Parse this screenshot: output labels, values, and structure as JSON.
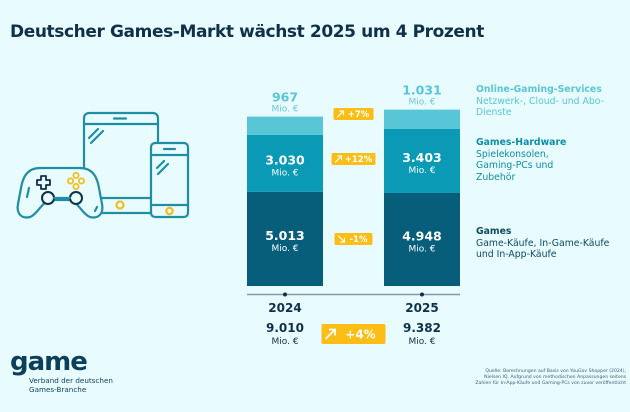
{
  "title": "Deutscher Games-Markt wächst 2025 um 4 Prozent",
  "colors": {
    "background": "#e8fbfe",
    "online": "#59c6d8",
    "hardware": "#0a9ab5",
    "games": "#075e7a",
    "badge": "#fbbd16",
    "dark_text": "#0f3049",
    "icon_stroke": "#1f8ea4",
    "icon_accent": "#f3bd1d"
  },
  "illustration": {
    "icons": [
      "gamepad-icon",
      "tablet-icon",
      "smartphone-icon"
    ]
  },
  "chart_data": {
    "type": "bar",
    "stacked": true,
    "title": "Deutscher Games-Markt wächst 2025 um 4 Prozent",
    "categories": [
      "2024",
      "2025"
    ],
    "unit": "Mio. €",
    "series": [
      {
        "name": "Games",
        "key": "games",
        "values": [
          5013,
          4948
        ],
        "labels": [
          "5.013",
          "4.948"
        ],
        "change": "-1%",
        "direction": "down"
      },
      {
        "name": "Games-Hardware",
        "key": "hardware",
        "values": [
          3030,
          3403
        ],
        "labels": [
          "3.030",
          "3.403"
        ],
        "change": "+12%",
        "direction": "up"
      },
      {
        "name": "Online-Gaming-Services",
        "key": "online",
        "values": [
          967,
          1031
        ],
        "labels": [
          "967",
          "1.031"
        ],
        "change": "+7%",
        "direction": "up"
      }
    ],
    "totals": {
      "values": [
        9010,
        9382
      ],
      "labels": [
        "9.010",
        "9.382"
      ],
      "change": "+4%",
      "direction": "up"
    },
    "unit_label": "Mio. €",
    "legend_position": "right",
    "grid": false
  },
  "legend": [
    {
      "title": "Online-Gaming-Services",
      "desc": "Netzwerk-, Cloud- und Abo-Dienste"
    },
    {
      "title": "Games-Hardware",
      "desc": "Spielekonsolen, Gaming-PCs und Zubehör"
    },
    {
      "title": "Games",
      "desc": "Game-Käufe, In-Game-Käufe und In-App-Käufe"
    }
  ],
  "logo": {
    "word": "game",
    "subtitle_line1": "Verband der deutschen",
    "subtitle_line2": "Games-Branche"
  },
  "source": {
    "line1": "Quelle: Berechnungen auf Basis von YouGov Shopper (2024),",
    "line2": "Nielsen IQ. Aufgrund von methodischen Anpassungen seitens",
    "line3": "Zahlen für In-App-Käufe und Gaming-PCs von zuvor veröffentlicht"
  }
}
